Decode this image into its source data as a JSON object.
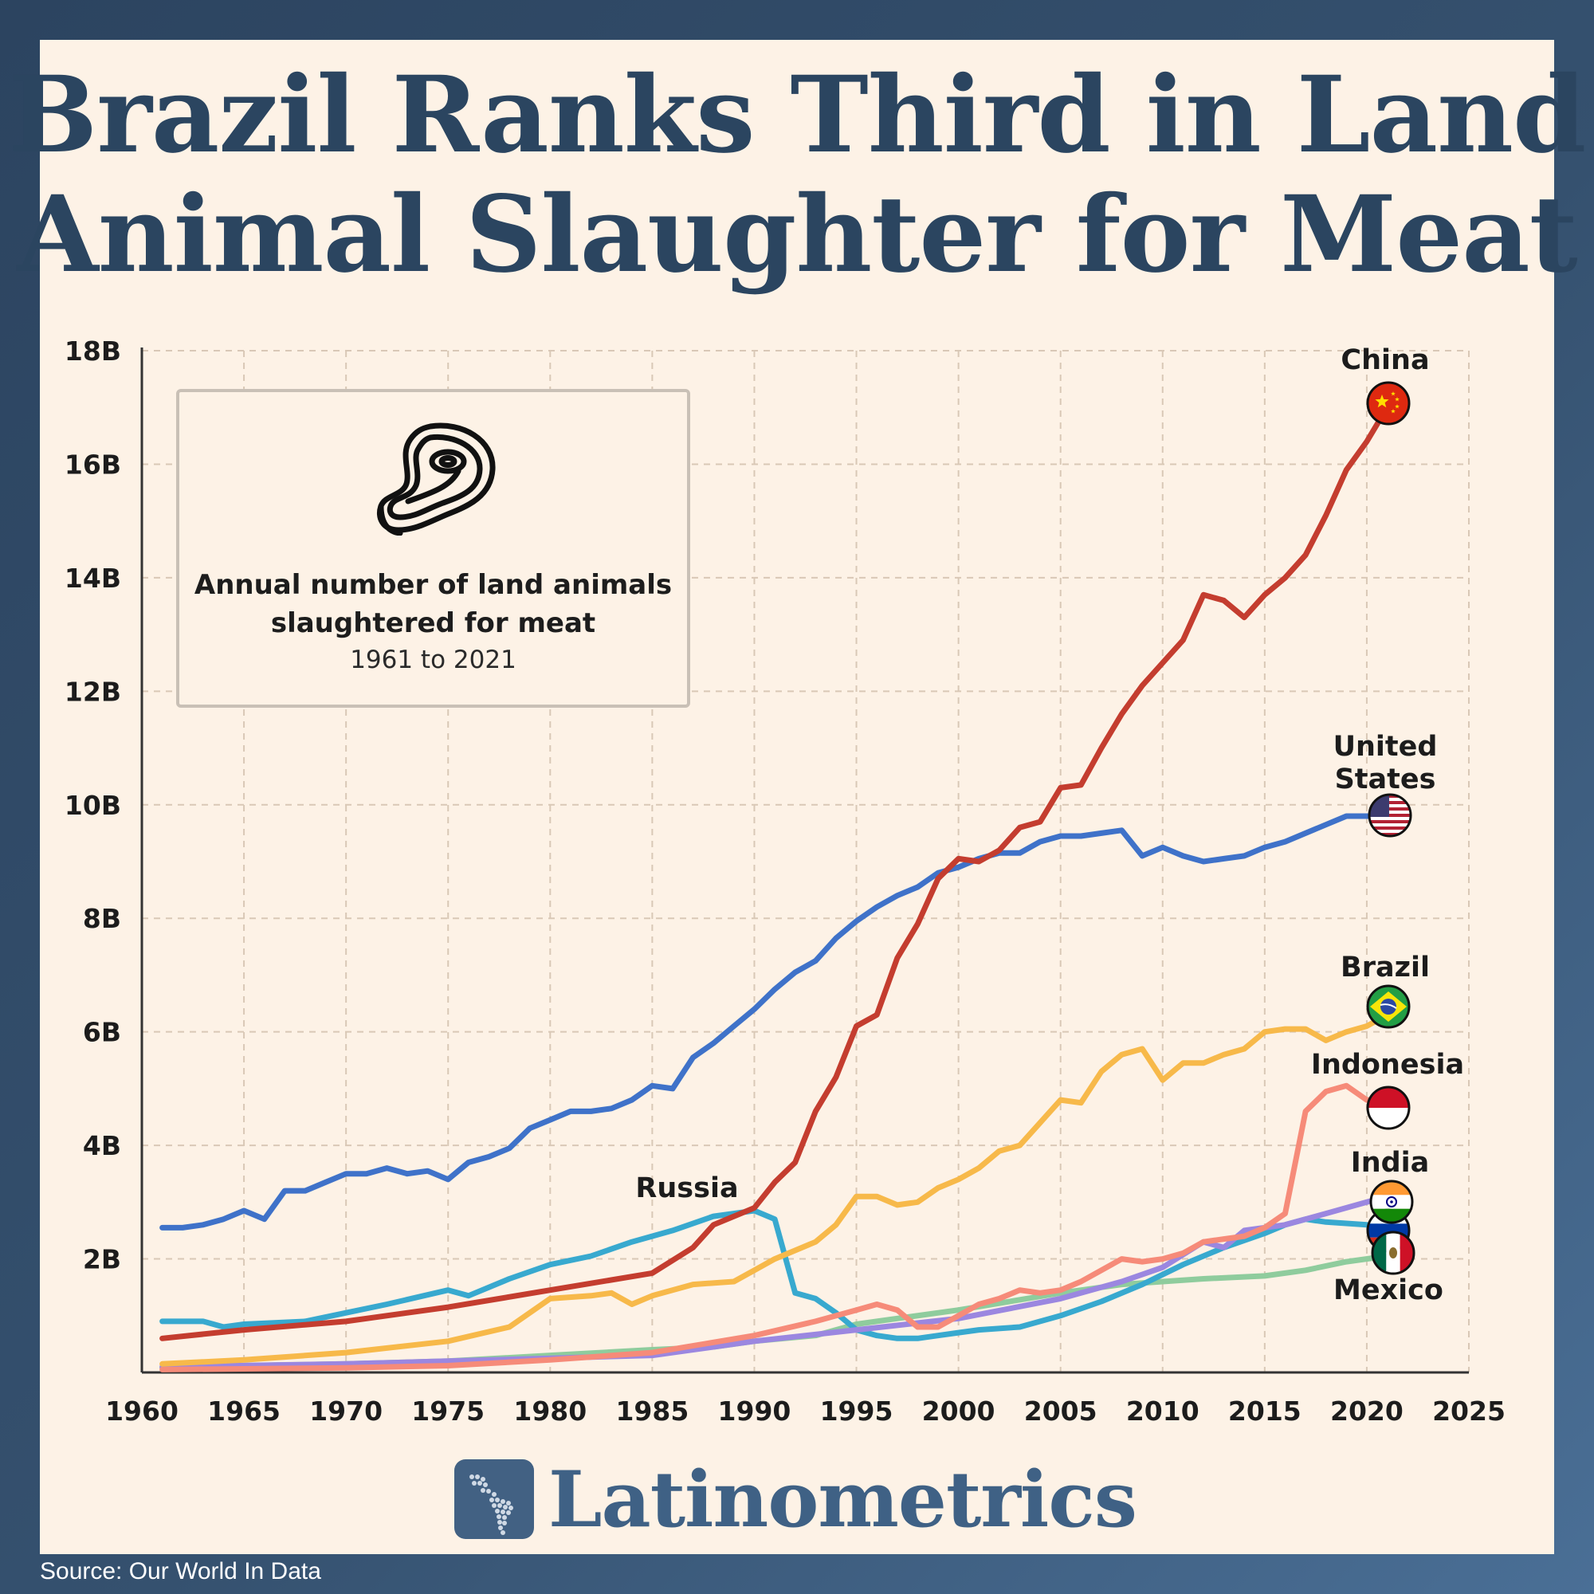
{
  "title": {
    "line1": "Brazil Ranks Third in Land",
    "line2": "Animal Slaughter for Meat"
  },
  "infobox": {
    "icon": "steak-icon",
    "description_line1": "Annual number of land animals",
    "description_line2": "slaughtered for meat",
    "range": "1961 to 2021"
  },
  "brand": {
    "name": "Latinometrics",
    "icon": "latin-america-map-icon"
  },
  "source": "Source: Our World In Data",
  "chart_data": {
    "type": "line",
    "xlim": [
      1960,
      2025
    ],
    "ylim": [
      0,
      18
    ],
    "x_ticks": [
      1960,
      1965,
      1970,
      1975,
      1980,
      1985,
      1990,
      1995,
      2000,
      2005,
      2010,
      2015,
      2020,
      2025
    ],
    "y_ticks": [
      2,
      4,
      6,
      8,
      10,
      12,
      14,
      16,
      18
    ],
    "y_tick_labels": [
      "2B",
      "4B",
      "6B",
      "8B",
      "10B",
      "12B",
      "14B",
      "16B",
      "18B"
    ],
    "grid": true,
    "series": [
      {
        "name": "China",
        "label_lines": [
          "China"
        ],
        "color": "#c43d2f",
        "flag": "china-flag-icon",
        "points": [
          [
            1961,
            0.6
          ],
          [
            1965,
            0.75
          ],
          [
            1970,
            0.9
          ],
          [
            1975,
            1.15
          ],
          [
            1980,
            1.45
          ],
          [
            1985,
            1.75
          ],
          [
            1987,
            2.2
          ],
          [
            1988,
            2.6
          ],
          [
            1990,
            2.9
          ],
          [
            1991,
            3.35
          ],
          [
            1992,
            3.7
          ],
          [
            1993,
            4.6
          ],
          [
            1994,
            5.2
          ],
          [
            1995,
            6.1
          ],
          [
            1996,
            6.3
          ],
          [
            1997,
            7.3
          ],
          [
            1998,
            7.9
          ],
          [
            1999,
            8.7
          ],
          [
            2000,
            9.05
          ],
          [
            2001,
            9.0
          ],
          [
            2002,
            9.2
          ],
          [
            2003,
            9.6
          ],
          [
            2004,
            9.7
          ],
          [
            2005,
            10.3
          ],
          [
            2006,
            10.35
          ],
          [
            2007,
            11.0
          ],
          [
            2008,
            11.6
          ],
          [
            2009,
            12.1
          ],
          [
            2010,
            12.5
          ],
          [
            2011,
            12.9
          ],
          [
            2012,
            13.7
          ],
          [
            2013,
            13.6
          ],
          [
            2014,
            13.3
          ],
          [
            2015,
            13.7
          ],
          [
            2016,
            14.0
          ],
          [
            2017,
            14.4
          ],
          [
            2018,
            15.1
          ],
          [
            2019,
            15.9
          ],
          [
            2020,
            16.4
          ],
          [
            2021,
            17.0
          ]
        ]
      },
      {
        "name": "United States",
        "label_lines": [
          "United",
          "States"
        ],
        "color": "#3f72c9",
        "flag": "us-flag-icon",
        "points": [
          [
            1961,
            2.55
          ],
          [
            1962,
            2.55
          ],
          [
            1963,
            2.6
          ],
          [
            1964,
            2.7
          ],
          [
            1965,
            2.85
          ],
          [
            1966,
            2.7
          ],
          [
            1967,
            3.2
          ],
          [
            1968,
            3.2
          ],
          [
            1969,
            3.35
          ],
          [
            1970,
            3.5
          ],
          [
            1971,
            3.5
          ],
          [
            1972,
            3.6
          ],
          [
            1973,
            3.5
          ],
          [
            1974,
            3.55
          ],
          [
            1975,
            3.4
          ],
          [
            1976,
            3.7
          ],
          [
            1977,
            3.8
          ],
          [
            1978,
            3.95
          ],
          [
            1979,
            4.3
          ],
          [
            1980,
            4.45
          ],
          [
            1981,
            4.6
          ],
          [
            1982,
            4.6
          ],
          [
            1983,
            4.65
          ],
          [
            1984,
            4.8
          ],
          [
            1985,
            5.05
          ],
          [
            1986,
            5.0
          ],
          [
            1987,
            5.55
          ],
          [
            1988,
            5.8
          ],
          [
            1989,
            6.1
          ],
          [
            1990,
            6.4
          ],
          [
            1991,
            6.75
          ],
          [
            1992,
            7.05
          ],
          [
            1993,
            7.25
          ],
          [
            1994,
            7.65
          ],
          [
            1995,
            7.95
          ],
          [
            1996,
            8.2
          ],
          [
            1997,
            8.4
          ],
          [
            1998,
            8.55
          ],
          [
            1999,
            8.8
          ],
          [
            2000,
            8.9
          ],
          [
            2001,
            9.05
          ],
          [
            2002,
            9.15
          ],
          [
            2003,
            9.15
          ],
          [
            2004,
            9.35
          ],
          [
            2005,
            9.45
          ],
          [
            2006,
            9.45
          ],
          [
            2007,
            9.5
          ],
          [
            2008,
            9.55
          ],
          [
            2009,
            9.1
          ],
          [
            2010,
            9.25
          ],
          [
            2011,
            9.1
          ],
          [
            2012,
            9.0
          ],
          [
            2013,
            9.05
          ],
          [
            2014,
            9.1
          ],
          [
            2015,
            9.25
          ],
          [
            2016,
            9.35
          ],
          [
            2017,
            9.5
          ],
          [
            2018,
            9.65
          ],
          [
            2019,
            9.8
          ],
          [
            2020,
            9.8
          ],
          [
            2021,
            9.8
          ]
        ]
      },
      {
        "name": "Brazil",
        "label_lines": [
          "Brazil"
        ],
        "color": "#f7b94a",
        "flag": "brazil-flag-icon",
        "points": [
          [
            1961,
            0.15
          ],
          [
            1965,
            0.22
          ],
          [
            1970,
            0.35
          ],
          [
            1975,
            0.55
          ],
          [
            1978,
            0.8
          ],
          [
            1980,
            1.3
          ],
          [
            1982,
            1.35
          ],
          [
            1983,
            1.4
          ],
          [
            1984,
            1.2
          ],
          [
            1985,
            1.35
          ],
          [
            1987,
            1.55
          ],
          [
            1989,
            1.6
          ],
          [
            1990,
            1.8
          ],
          [
            1991,
            2.0
          ],
          [
            1993,
            2.3
          ],
          [
            1994,
            2.6
          ],
          [
            1995,
            3.1
          ],
          [
            1996,
            3.1
          ],
          [
            1997,
            2.95
          ],
          [
            1998,
            3.0
          ],
          [
            1999,
            3.25
          ],
          [
            2000,
            3.4
          ],
          [
            2001,
            3.6
          ],
          [
            2002,
            3.9
          ],
          [
            2003,
            4.0
          ],
          [
            2004,
            4.4
          ],
          [
            2005,
            4.8
          ],
          [
            2006,
            4.75
          ],
          [
            2007,
            5.3
          ],
          [
            2008,
            5.6
          ],
          [
            2009,
            5.7
          ],
          [
            2010,
            5.15
          ],
          [
            2011,
            5.45
          ],
          [
            2012,
            5.45
          ],
          [
            2013,
            5.6
          ],
          [
            2014,
            5.7
          ],
          [
            2015,
            6.0
          ],
          [
            2016,
            6.05
          ],
          [
            2017,
            6.05
          ],
          [
            2018,
            5.85
          ],
          [
            2019,
            6.0
          ],
          [
            2020,
            6.1
          ],
          [
            2021,
            6.3
          ]
        ]
      },
      {
        "name": "Indonesia",
        "label_lines": [
          "Indonesia"
        ],
        "color": "#f68b79",
        "flag": "indonesia-flag-icon",
        "points": [
          [
            1961,
            0.05
          ],
          [
            1970,
            0.08
          ],
          [
            1975,
            0.12
          ],
          [
            1980,
            0.22
          ],
          [
            1985,
            0.35
          ],
          [
            1990,
            0.65
          ],
          [
            1993,
            0.9
          ],
          [
            1995,
            1.1
          ],
          [
            1996,
            1.2
          ],
          [
            1997,
            1.1
          ],
          [
            1998,
            0.8
          ],
          [
            1999,
            0.8
          ],
          [
            2000,
            1.0
          ],
          [
            2001,
            1.2
          ],
          [
            2002,
            1.3
          ],
          [
            2003,
            1.45
          ],
          [
            2004,
            1.4
          ],
          [
            2005,
            1.45
          ],
          [
            2006,
            1.6
          ],
          [
            2007,
            1.8
          ],
          [
            2008,
            2.0
          ],
          [
            2009,
            1.95
          ],
          [
            2010,
            2.0
          ],
          [
            2011,
            2.1
          ],
          [
            2012,
            2.3
          ],
          [
            2013,
            2.35
          ],
          [
            2014,
            2.4
          ],
          [
            2015,
            2.55
          ],
          [
            2016,
            2.8
          ],
          [
            2017,
            4.6
          ],
          [
            2018,
            4.95
          ],
          [
            2019,
            5.05
          ],
          [
            2020,
            4.8
          ],
          [
            2021,
            4.8
          ]
        ]
      },
      {
        "name": "India",
        "label_lines": [
          "India"
        ],
        "color": "#9b87e0",
        "flag": "india-flag-icon",
        "points": [
          [
            1961,
            0.1
          ],
          [
            1970,
            0.15
          ],
          [
            1975,
            0.2
          ],
          [
            1980,
            0.25
          ],
          [
            1985,
            0.3
          ],
          [
            1987,
            0.4
          ],
          [
            1990,
            0.55
          ],
          [
            1995,
            0.75
          ],
          [
            2000,
            0.95
          ],
          [
            2005,
            1.3
          ],
          [
            2008,
            1.6
          ],
          [
            2010,
            1.85
          ],
          [
            2012,
            2.3
          ],
          [
            2013,
            2.2
          ],
          [
            2014,
            2.5
          ],
          [
            2016,
            2.6
          ],
          [
            2018,
            2.8
          ],
          [
            2020,
            3.0
          ],
          [
            2021,
            3.1
          ]
        ]
      },
      {
        "name": "Russia",
        "label_lines": [
          "Russia"
        ],
        "color": "#38a9cf",
        "flag": "russia-flag-icon",
        "points": [
          [
            1961,
            0.9
          ],
          [
            1963,
            0.9
          ],
          [
            1964,
            0.8
          ],
          [
            1965,
            0.85
          ],
          [
            1968,
            0.9
          ],
          [
            1970,
            1.05
          ],
          [
            1972,
            1.2
          ],
          [
            1975,
            1.45
          ],
          [
            1976,
            1.35
          ],
          [
            1978,
            1.65
          ],
          [
            1980,
            1.9
          ],
          [
            1982,
            2.05
          ],
          [
            1984,
            2.3
          ],
          [
            1986,
            2.5
          ],
          [
            1988,
            2.75
          ],
          [
            1989,
            2.8
          ],
          [
            1990,
            2.85
          ],
          [
            1991,
            2.7
          ],
          [
            1992,
            1.4
          ],
          [
            1993,
            1.3
          ],
          [
            1994,
            1.05
          ],
          [
            1995,
            0.75
          ],
          [
            1996,
            0.65
          ],
          [
            1997,
            0.6
          ],
          [
            1998,
            0.6
          ],
          [
            1999,
            0.65
          ],
          [
            2000,
            0.7
          ],
          [
            2001,
            0.75
          ],
          [
            2003,
            0.8
          ],
          [
            2005,
            1.0
          ],
          [
            2007,
            1.25
          ],
          [
            2009,
            1.55
          ],
          [
            2011,
            1.9
          ],
          [
            2013,
            2.2
          ],
          [
            2015,
            2.45
          ],
          [
            2016,
            2.6
          ],
          [
            2017,
            2.7
          ],
          [
            2018,
            2.65
          ],
          [
            2020,
            2.6
          ],
          [
            2021,
            2.55
          ]
        ]
      },
      {
        "name": "Mexico",
        "label_lines": [
          "Mexico"
        ],
        "color": "#8fcc9d",
        "flag": "mexico-flag-icon",
        "points": [
          [
            1961,
            0.08
          ],
          [
            1965,
            0.12
          ],
          [
            1970,
            0.15
          ],
          [
            1975,
            0.2
          ],
          [
            1980,
            0.3
          ],
          [
            1985,
            0.4
          ],
          [
            1988,
            0.45
          ],
          [
            1990,
            0.55
          ],
          [
            1993,
            0.65
          ],
          [
            1995,
            0.85
          ],
          [
            1997,
            0.95
          ],
          [
            2000,
            1.1
          ],
          [
            2005,
            1.4
          ],
          [
            2008,
            1.55
          ],
          [
            2010,
            1.6
          ],
          [
            2012,
            1.65
          ],
          [
            2015,
            1.7
          ],
          [
            2017,
            1.8
          ],
          [
            2019,
            1.95
          ],
          [
            2021,
            2.05
          ]
        ]
      }
    ]
  }
}
